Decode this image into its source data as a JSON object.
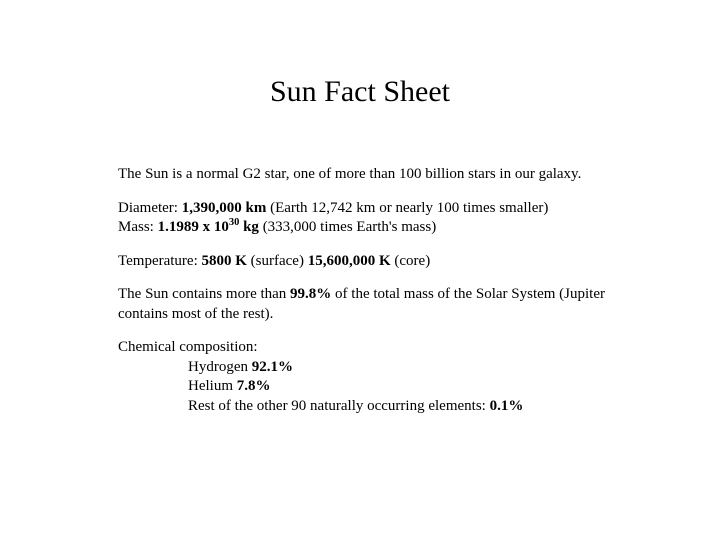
{
  "title": "Sun Fact Sheet",
  "intro": "The Sun is a normal G2 star, one of more than 100 billion stars in our galaxy.",
  "diameter": {
    "label": "Diameter: ",
    "value": "1,390,000 km",
    "note": " (Earth 12,742 km or nearly 100 times smaller)"
  },
  "mass": {
    "label": "Mass: ",
    "value_prefix": "1.1989 x 10",
    "value_exp": "30",
    "value_suffix": " kg",
    "note": " (333,000 times Earth's mass)"
  },
  "temperature": {
    "label": "Temperature: ",
    "surface_value": "5800 K",
    "surface_note": " (surface) ",
    "core_value": "15,600,000 K",
    "core_note": " (core)"
  },
  "mass_fraction": {
    "pre": "The Sun contains more than ",
    "value": "99.8%",
    "post": " of the total mass of the Solar System (Jupiter contains most of the rest)."
  },
  "composition": {
    "heading": "Chemical composition:",
    "items": [
      {
        "label": "Hydrogen ",
        "value": "92.1%"
      },
      {
        "label": "Helium ",
        "value": "7.8%"
      },
      {
        "label": "Rest of the other 90 naturally occurring elements: ",
        "value": "0.1%"
      }
    ]
  },
  "colors": {
    "background": "#ffffff",
    "text": "#000000"
  },
  "typography": {
    "font_family": "Times New Roman",
    "title_fontsize": 30,
    "body_fontsize": 15
  }
}
